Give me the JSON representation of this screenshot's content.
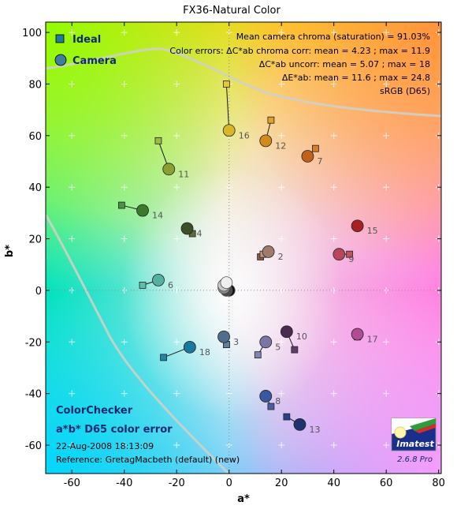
{
  "chart_data": {
    "type": "scatter",
    "title": "FX36-Natural Color",
    "xlabel": "a*",
    "ylabel": "b*",
    "xlim": [
      -70,
      81
    ],
    "ylim": [
      -71,
      104
    ],
    "xticks": [
      -60,
      -40,
      -20,
      0,
      20,
      40,
      60,
      80
    ],
    "yticks": [
      -60,
      -40,
      -20,
      0,
      20,
      40,
      60,
      80,
      100
    ],
    "grid": true,
    "legend": {
      "position": "top-left",
      "entries": [
        "Ideal",
        "Camera"
      ]
    },
    "stats": [
      "Mean camera chroma (saturation) = 91.03%",
      "Color errors:  ΔC*ab chroma corr:  mean = 4.23 ;  max = 11.9",
      "ΔC*ab uncorr:  mean = 5.07 ;  max = 18",
      "ΔE*ab:  mean = 11.6 ;  max = 24.8",
      "sRGB (D65)"
    ],
    "annotations": {
      "chart_name": "ColorChecker",
      "subtitle": "a*b* D65 color error",
      "timestamp": "22-Aug-2008 18:13:09",
      "reference": "Reference: GretagMacbeth (default) (new)",
      "version": "2.6.8  Pro",
      "brand": "Imatest"
    },
    "patches": [
      {
        "id": "2",
        "ideal": [
          13,
          14
        ],
        "camera": [
          15,
          15
        ],
        "color": "#a07a6a",
        "ideal_color": "#c49680"
      },
      {
        "id": "3",
        "ideal": [
          -1,
          -21
        ],
        "camera": [
          -2,
          -18
        ],
        "color": "#4e6e8c",
        "ideal_color": "#5f7fa0"
      },
      {
        "id": "4",
        "ideal": [
          -14,
          22
        ],
        "camera": [
          -16,
          24
        ],
        "color": "#3e4e26",
        "ideal_color": "#5d6c38"
      },
      {
        "id": "5",
        "ideal": [
          11,
          -25
        ],
        "camera": [
          14,
          -20
        ],
        "color": "#7a77a8",
        "ideal_color": "#8582b5"
      },
      {
        "id": "6",
        "ideal": [
          -33,
          2
        ],
        "camera": [
          -27,
          4
        ],
        "color": "#55b0a2",
        "ideal_color": "#62bdae"
      },
      {
        "id": "7",
        "ideal": [
          33,
          55
        ],
        "camera": [
          30,
          52
        ],
        "color": "#c0621c",
        "ideal_color": "#d77f2b"
      },
      {
        "id": "8",
        "ideal": [
          16,
          -45
        ],
        "camera": [
          14,
          -41
        ],
        "color": "#3858a2",
        "ideal_color": "#4a5ea8"
      },
      {
        "id": "9",
        "ideal": [
          46,
          14
        ],
        "camera": [
          42,
          14
        ],
        "color": "#b8465a",
        "ideal_color": "#c45062"
      },
      {
        "id": "10",
        "ideal": [
          25,
          -23
        ],
        "camera": [
          22,
          -16
        ],
        "color": "#4b2a52",
        "ideal_color": "#5e3c6c"
      },
      {
        "id": "11",
        "ideal": [
          -27,
          58
        ],
        "camera": [
          -23,
          47
        ],
        "color": "#8aa032",
        "ideal_color": "#9dbb3e"
      },
      {
        "id": "12",
        "ideal": [
          16,
          66
        ],
        "camera": [
          14,
          58
        ],
        "color": "#d48a1a",
        "ideal_color": "#e0a22c"
      },
      {
        "id": "13",
        "ideal": [
          22,
          -49
        ],
        "camera": [
          27,
          -52
        ],
        "color": "#1f3270",
        "ideal_color": "#283e8e"
      },
      {
        "id": "14",
        "ideal": [
          -41,
          33
        ],
        "camera": [
          -33,
          31
        ],
        "color": "#3b7a2e",
        "ideal_color": "#489441"
      },
      {
        "id": "15",
        "ideal": [
          49,
          25
        ],
        "camera": [
          49,
          25
        ],
        "color": "#a82222",
        "ideal_color": "#b22d2b"
      },
      {
        "id": "16",
        "ideal": [
          -1,
          80
        ],
        "camera": [
          0,
          62
        ],
        "color": "#d9b628",
        "ideal_color": "#e8c832"
      },
      {
        "id": "17",
        "ideal": [
          49,
          -18
        ],
        "camera": [
          49,
          -17
        ],
        "color": "#b24a94",
        "ideal_color": "#bc5796"
      },
      {
        "id": "18",
        "ideal": [
          -25,
          -26
        ],
        "camera": [
          -15,
          -22
        ],
        "color": "#18789e",
        "ideal_color": "#1c88a6"
      },
      {
        "id": "",
        "ideal": [
          0,
          0
        ],
        "camera": [
          0,
          0
        ],
        "color": "#1a1a1a",
        "ideal_color": "#1a1a1a"
      }
    ],
    "neutral_patches": [
      {
        "camera": [
          0,
          0
        ],
        "color": "#111111"
      },
      {
        "camera": [
          -1,
          0
        ],
        "color": "#4a4a4a"
      },
      {
        "camera": [
          -2,
          1
        ],
        "color": "#8a8a8a"
      },
      {
        "camera": [
          -2,
          2
        ],
        "color": "#c8c8c8"
      },
      {
        "camera": [
          -1,
          3
        ],
        "color": "#efefef"
      }
    ],
    "extra_ideal_squares": [
      {
        "a": 12,
        "b": 13,
        "color": "#8c5a4a"
      },
      {
        "a": -1,
        "b": -21,
        "color": "#5f7fa0"
      }
    ]
  }
}
